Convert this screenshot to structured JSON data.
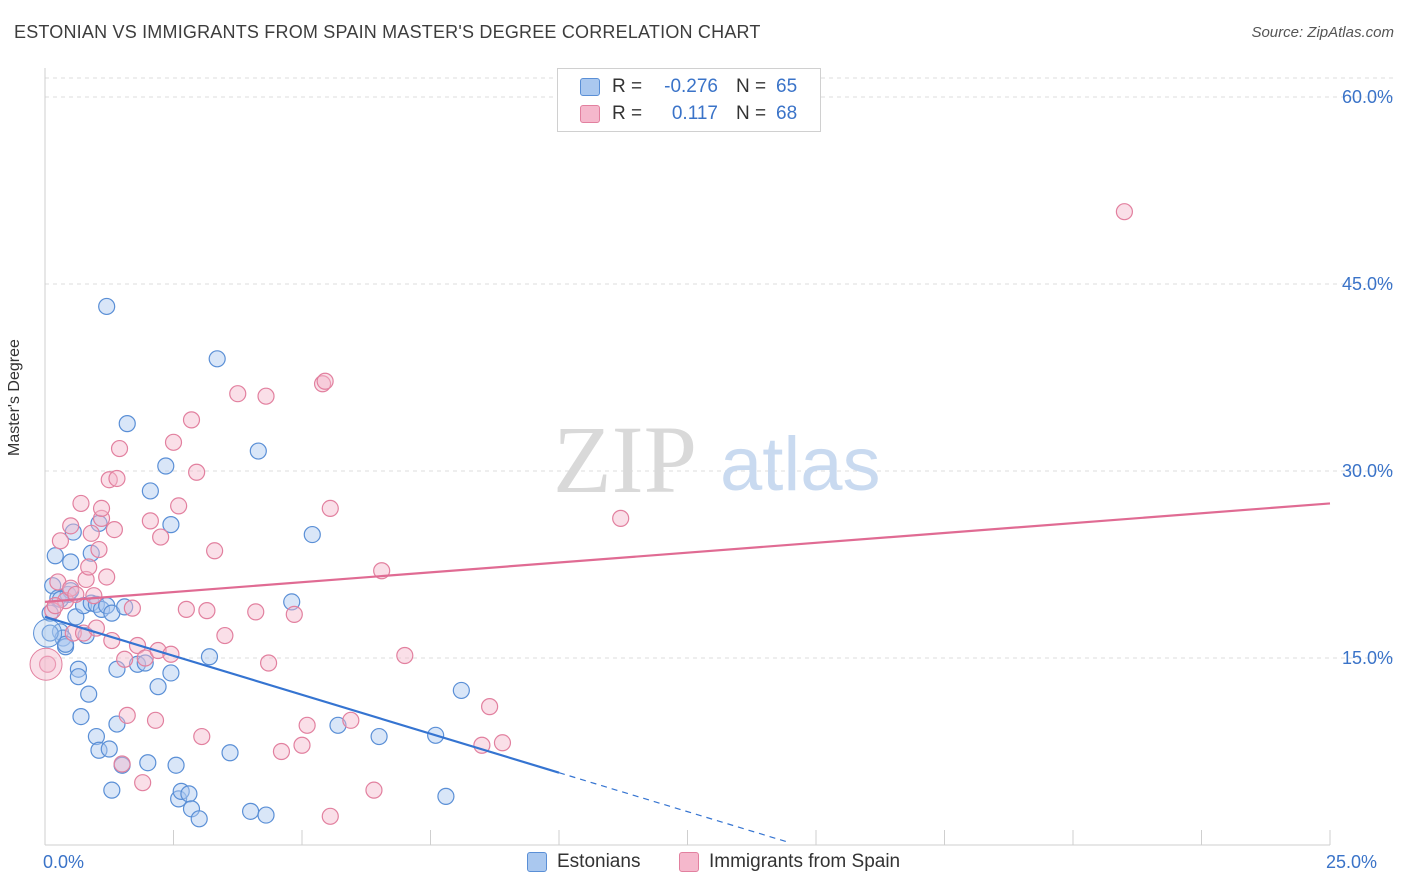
{
  "title": "ESTONIAN VS IMMIGRANTS FROM SPAIN MASTER'S DEGREE CORRELATION CHART",
  "source": "Source: ZipAtlas.com",
  "watermark": {
    "zip": "ZIP",
    "atlas": "atlas"
  },
  "colors": {
    "blue_fill": "#aac8ef",
    "blue_stroke": "#5a8fd6",
    "blue_line": "#3574d1",
    "pink_fill": "#f5b8cc",
    "pink_stroke": "#e2809f",
    "pink_line": "#e06b93",
    "tick_text": "#3a73c8",
    "grid": "#dcdcdc"
  },
  "legend": {
    "rows": [
      {
        "r_label": "R =",
        "r_value": "-0.276",
        "n_label": "N =",
        "n_value": "65"
      },
      {
        "r_label": "R =",
        "r_value": "0.117",
        "n_label": "N =",
        "n_value": "68"
      }
    ]
  },
  "chart_data": {
    "type": "scatter",
    "ylabel": "Master's Degree",
    "xlim": [
      0,
      25
    ],
    "ylim": [
      0,
      60
    ],
    "y_ticks": [
      {
        "value": 15,
        "label": "15.0%"
      },
      {
        "value": 30,
        "label": "30.0%"
      },
      {
        "value": 45,
        "label": "45.0%"
      },
      {
        "value": 60,
        "label": "60.0%"
      }
    ],
    "x_tick_labels": [
      {
        "value": 0,
        "label": "0.0%"
      },
      {
        "value": 25,
        "label": "25.0%"
      }
    ],
    "grid": true,
    "series": [
      {
        "name": "Estonians",
        "color": "blue",
        "trend": {
          "x0": 0,
          "y0": 18.3,
          "x1": 10,
          "y1": 5.8,
          "dash_to_x": 14.5
        },
        "points": [
          [
            0.1,
            18.6
          ],
          [
            0.15,
            20.8
          ],
          [
            0.2,
            23.2
          ],
          [
            0.25,
            19.8
          ],
          [
            0.3,
            17.1
          ],
          [
            0.35,
            16.6
          ],
          [
            0.4,
            15.9
          ],
          [
            0.45,
            20.1
          ],
          [
            0.5,
            22.7
          ],
          [
            0.5,
            20.4
          ],
          [
            0.55,
            25.1
          ],
          [
            0.6,
            18.3
          ],
          [
            0.65,
            14.1
          ],
          [
            0.65,
            13.5
          ],
          [
            0.7,
            10.3
          ],
          [
            0.75,
            19.2
          ],
          [
            0.8,
            16.8
          ],
          [
            0.85,
            12.1
          ],
          [
            0.9,
            23.4
          ],
          [
            0.9,
            19.4
          ],
          [
            1.0,
            19.3
          ],
          [
            1.0,
            8.7
          ],
          [
            1.05,
            7.6
          ],
          [
            1.05,
            25.8
          ],
          [
            1.1,
            18.9
          ],
          [
            1.2,
            43.2
          ],
          [
            1.2,
            19.2
          ],
          [
            1.25,
            7.7
          ],
          [
            1.3,
            18.6
          ],
          [
            1.3,
            4.4
          ],
          [
            1.4,
            14.1
          ],
          [
            1.4,
            9.7
          ],
          [
            1.5,
            6.4
          ],
          [
            1.6,
            33.8
          ],
          [
            1.8,
            14.5
          ],
          [
            1.95,
            14.6
          ],
          [
            2.0,
            6.6
          ],
          [
            2.05,
            28.4
          ],
          [
            2.2,
            12.7
          ],
          [
            2.35,
            30.4
          ],
          [
            2.45,
            13.8
          ],
          [
            2.45,
            25.7
          ],
          [
            2.55,
            6.4
          ],
          [
            2.6,
            3.7
          ],
          [
            2.65,
            4.3
          ],
          [
            2.8,
            4.1
          ],
          [
            2.85,
            2.9
          ],
          [
            3.0,
            2.1
          ],
          [
            3.2,
            15.1
          ],
          [
            3.35,
            39.0
          ],
          [
            3.6,
            7.4
          ],
          [
            4.0,
            2.7
          ],
          [
            4.15,
            31.6
          ],
          [
            4.3,
            2.4
          ],
          [
            4.8,
            19.5
          ],
          [
            5.2,
            24.9
          ],
          [
            5.7,
            9.6
          ],
          [
            6.5,
            8.7
          ],
          [
            7.6,
            8.8
          ],
          [
            7.8,
            3.9
          ],
          [
            8.1,
            12.4
          ],
          [
            0.1,
            17.0
          ],
          [
            0.3,
            19.7
          ],
          [
            0.4,
            16.1
          ],
          [
            1.55,
            19.1
          ]
        ]
      },
      {
        "name": "Immigrants from Spain",
        "color": "pink",
        "trend": {
          "x0": 0,
          "y0": 19.5,
          "x1": 25,
          "y1": 27.4
        },
        "points": [
          [
            0.05,
            14.5
          ],
          [
            0.15,
            18.8
          ],
          [
            0.25,
            21.1
          ],
          [
            0.3,
            24.4
          ],
          [
            0.4,
            19.6
          ],
          [
            0.5,
            20.6
          ],
          [
            0.5,
            25.6
          ],
          [
            0.55,
            17.0
          ],
          [
            0.6,
            20.1
          ],
          [
            0.7,
            27.4
          ],
          [
            0.75,
            17.0
          ],
          [
            0.8,
            21.3
          ],
          [
            0.85,
            22.3
          ],
          [
            0.9,
            25.0
          ],
          [
            0.95,
            20.0
          ],
          [
            1.0,
            17.4
          ],
          [
            1.05,
            23.7
          ],
          [
            1.1,
            26.2
          ],
          [
            1.1,
            27.0
          ],
          [
            1.2,
            21.5
          ],
          [
            1.25,
            29.3
          ],
          [
            1.3,
            16.4
          ],
          [
            1.35,
            25.3
          ],
          [
            1.4,
            29.4
          ],
          [
            1.45,
            31.8
          ],
          [
            1.5,
            6.5
          ],
          [
            1.55,
            14.9
          ],
          [
            1.6,
            10.4
          ],
          [
            1.7,
            19.0
          ],
          [
            1.8,
            16.0
          ],
          [
            1.9,
            5.0
          ],
          [
            1.95,
            15.0
          ],
          [
            2.05,
            26.0
          ],
          [
            2.15,
            10.0
          ],
          [
            2.2,
            15.6
          ],
          [
            2.25,
            24.7
          ],
          [
            2.45,
            15.3
          ],
          [
            2.5,
            32.3
          ],
          [
            2.6,
            27.2
          ],
          [
            2.75,
            18.9
          ],
          [
            2.85,
            34.1
          ],
          [
            2.95,
            29.9
          ],
          [
            3.05,
            8.7
          ],
          [
            3.15,
            18.8
          ],
          [
            3.3,
            23.6
          ],
          [
            3.5,
            16.8
          ],
          [
            3.75,
            36.2
          ],
          [
            4.1,
            18.7
          ],
          [
            4.3,
            36.0
          ],
          [
            4.35,
            14.6
          ],
          [
            4.6,
            7.5
          ],
          [
            4.85,
            18.5
          ],
          [
            5.0,
            8.0
          ],
          [
            5.1,
            9.6
          ],
          [
            5.4,
            37.0
          ],
          [
            5.45,
            37.2
          ],
          [
            5.55,
            27.0
          ],
          [
            5.55,
            2.3
          ],
          [
            5.95,
            10.0
          ],
          [
            6.4,
            4.4
          ],
          [
            6.55,
            22.0
          ],
          [
            7.0,
            15.2
          ],
          [
            8.5,
            8.0
          ],
          [
            8.65,
            11.1
          ],
          [
            8.9,
            8.2
          ],
          [
            11.2,
            26.2
          ],
          [
            21.0,
            50.8
          ],
          [
            0.2,
            19.2
          ]
        ]
      }
    ]
  }
}
